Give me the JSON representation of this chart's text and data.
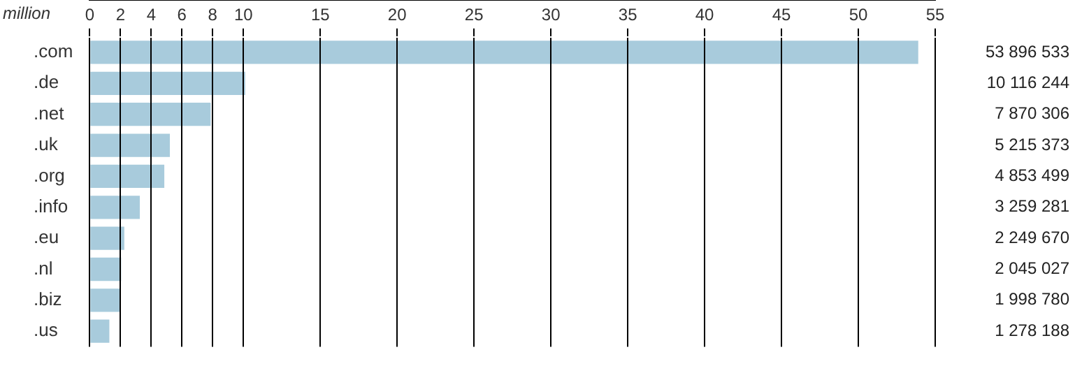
{
  "chart_data": {
    "type": "bar",
    "orientation": "horizontal",
    "xlabel": "million",
    "categories": [
      ".com",
      ".de",
      ".net",
      ".uk",
      ".org",
      ".info",
      ".eu",
      ".nl",
      ".biz",
      ".us"
    ],
    "values": [
      53.896533,
      10.116244,
      7.870306,
      5.215373,
      4.853499,
      3.259281,
      2.24967,
      2.045027,
      1.99878,
      1.278188
    ],
    "annotations": [
      "53 896 533",
      "10 116 244",
      "7 870 306",
      "5 215 373",
      "4 853 499",
      "3 259 281",
      "2 249 670",
      "2 045 027",
      "1 998 780",
      "1 278 188"
    ],
    "color": "#a8cbdc",
    "xlim": [
      0,
      55
    ],
    "xticks": [
      0,
      2,
      4,
      6,
      8,
      10,
      15,
      20,
      25,
      30,
      35,
      40,
      45,
      50,
      55
    ],
    "grid": "x",
    "legend": false
  }
}
